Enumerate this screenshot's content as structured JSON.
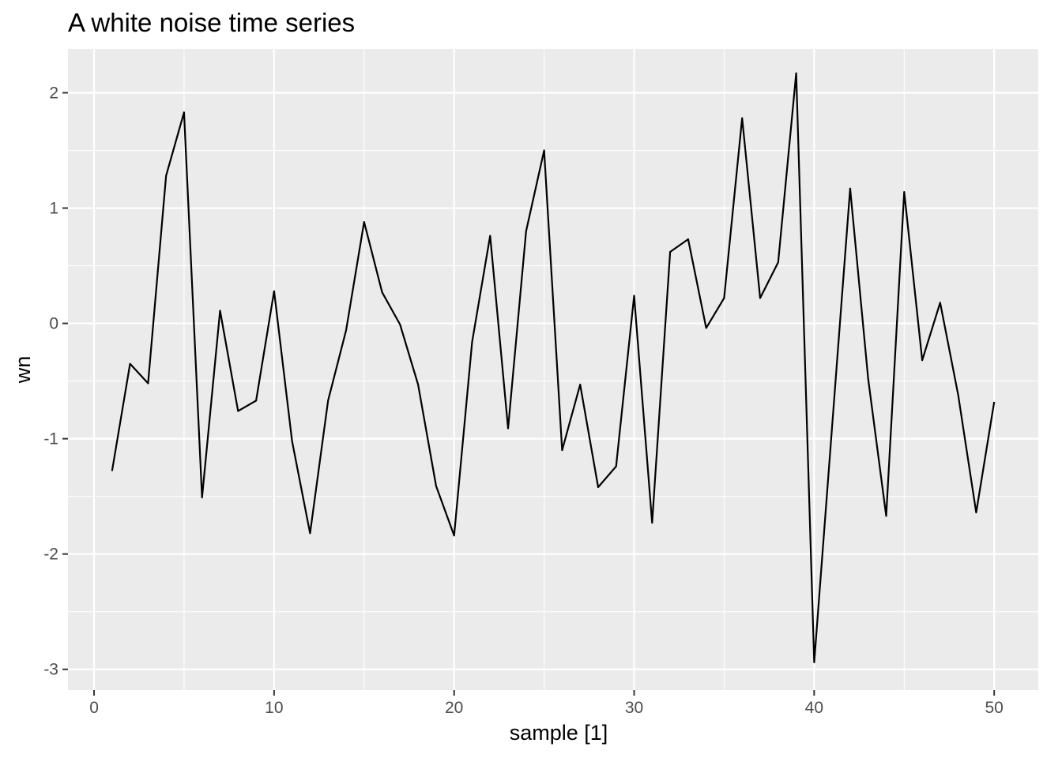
{
  "chart_data": {
    "type": "line",
    "title": "A white noise time series",
    "xlabel": "sample [1]",
    "ylabel": "wn",
    "xlim": [
      -1.45,
      52.45
    ],
    "ylim": [
      -3.18,
      2.38
    ],
    "x_ticks": [
      0,
      10,
      20,
      30,
      40,
      50
    ],
    "x_tick_labels": [
      "0",
      "10",
      "20",
      "30",
      "40",
      "50"
    ],
    "y_ticks": [
      -3,
      -2,
      -1,
      0,
      1,
      2
    ],
    "y_tick_labels": [
      "-3",
      "-2",
      "-1",
      "0",
      "1",
      "2"
    ],
    "x_minor": [
      5,
      15,
      25,
      35,
      45
    ],
    "y_minor": [
      -2.5,
      -1.5,
      -0.5,
      0.5,
      1.5
    ],
    "grid": true,
    "legend": "none",
    "colors": {
      "panel": "#ebebeb",
      "grid": "#ffffff",
      "line": "#000000",
      "tick_text": "#4d4d4d",
      "tick_mark": "#333333"
    },
    "series": [
      {
        "x": [
          1,
          2,
          3,
          4,
          5,
          6,
          7,
          8,
          9,
          10,
          11,
          12,
          13,
          14,
          15,
          16,
          17,
          18,
          19,
          20,
          21,
          22,
          23,
          24,
          25,
          26,
          27,
          28,
          29,
          30,
          31,
          32,
          33,
          34,
          35,
          36,
          37,
          38,
          39,
          40,
          41,
          42,
          43,
          44,
          45,
          46,
          47,
          48,
          49,
          50
        ],
        "values": [
          -1.28,
          -0.35,
          -0.52,
          1.28,
          1.83,
          -1.51,
          0.11,
          -0.76,
          -0.67,
          0.28,
          -1.02,
          -1.82,
          -0.67,
          -0.06,
          0.88,
          0.27,
          -0.01,
          -0.53,
          -1.41,
          -1.84,
          -0.16,
          0.76,
          -0.91,
          0.8,
          1.5,
          -1.1,
          -0.53,
          -1.42,
          -1.24,
          0.24,
          -1.73,
          0.62,
          0.73,
          -0.04,
          0.22,
          1.78,
          0.22,
          0.53,
          2.17,
          -2.94,
          -0.89,
          1.17,
          -0.48,
          -1.67,
          1.14,
          -0.32,
          0.18,
          -0.62,
          -1.64,
          -0.68
        ]
      }
    ]
  }
}
